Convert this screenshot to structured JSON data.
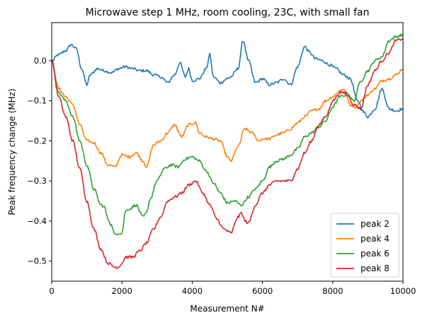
{
  "chart_data": {
    "type": "line",
    "title": "Microwave step 1 MHz, room cooling, 23C, with small fan",
    "xlabel": "Measurement N#",
    "ylabel": "Peak frequency change (MHz)",
    "xlim": [
      0,
      10000
    ],
    "ylim": [
      -0.55,
      0.095
    ],
    "xticks": [
      0,
      2000,
      4000,
      6000,
      8000,
      10000
    ],
    "xtick_labels": [
      "0",
      "2000",
      "4000",
      "6000",
      "8000",
      "10000"
    ],
    "yticks": [
      0.0,
      -0.1,
      -0.2,
      -0.3,
      -0.4,
      -0.5
    ],
    "ytick_labels": [
      "0.0",
      "−0.1",
      "−0.2",
      "−0.3",
      "−0.4",
      "−0.5"
    ],
    "grid": false,
    "legend": "lower-right",
    "series": [
      {
        "name": "peak 2",
        "color": "#1f77b4",
        "x": [
          0,
          200,
          400,
          550,
          700,
          850,
          1000,
          1100,
          1300,
          1500,
          1700,
          1900,
          2100,
          2300,
          2500,
          2700,
          2900,
          3100,
          3300,
          3500,
          3650,
          3800,
          3900,
          4000,
          4200,
          4400,
          4500,
          4600,
          4800,
          5000,
          5100,
          5300,
          5450,
          5600,
          5800,
          6000,
          6200,
          6400,
          6600,
          6800,
          7000,
          7200,
          7350,
          7500,
          7700,
          7900,
          8100,
          8300,
          8500,
          8700,
          8900,
          9000,
          9200,
          9400,
          9600,
          9800,
          10000
        ],
        "y": [
          0.0,
          0.015,
          0.025,
          0.04,
          0.03,
          -0.02,
          -0.06,
          -0.035,
          -0.02,
          -0.025,
          -0.03,
          -0.02,
          -0.015,
          -0.02,
          -0.025,
          -0.025,
          -0.035,
          -0.04,
          -0.055,
          -0.035,
          -0.005,
          -0.04,
          -0.02,
          -0.05,
          -0.045,
          -0.02,
          0.015,
          -0.04,
          -0.055,
          -0.045,
          -0.04,
          -0.02,
          0.05,
          0.0,
          -0.055,
          -0.045,
          -0.06,
          -0.055,
          -0.045,
          -0.06,
          -0.015,
          0.035,
          0.02,
          0.005,
          0.0,
          -0.01,
          -0.02,
          -0.035,
          -0.045,
          -0.1,
          -0.13,
          -0.14,
          -0.12,
          -0.07,
          -0.12,
          -0.125,
          -0.12
        ]
      },
      {
        "name": "peak 4",
        "color": "#ff7f0e",
        "x": [
          0,
          200,
          400,
          600,
          800,
          1000,
          1200,
          1400,
          1600,
          1800,
          2000,
          2200,
          2400,
          2600,
          2700,
          2900,
          3100,
          3300,
          3500,
          3700,
          3900,
          4100,
          4200,
          4400,
          4600,
          4800,
          5000,
          5100,
          5300,
          5500,
          5700,
          5900,
          6000,
          6200,
          6400,
          6600,
          6800,
          7000,
          7200,
          7400,
          7600,
          7800,
          8000,
          8200,
          8300,
          8500,
          8650,
          8800,
          9000,
          9200,
          9400,
          9600,
          9800,
          10000
        ],
        "y": [
          0.0,
          -0.07,
          -0.09,
          -0.11,
          -0.16,
          -0.2,
          -0.205,
          -0.23,
          -0.26,
          -0.265,
          -0.235,
          -0.24,
          -0.23,
          -0.25,
          -0.265,
          -0.21,
          -0.2,
          -0.18,
          -0.16,
          -0.19,
          -0.16,
          -0.155,
          -0.18,
          -0.19,
          -0.195,
          -0.2,
          -0.24,
          -0.25,
          -0.215,
          -0.17,
          -0.18,
          -0.2,
          -0.195,
          -0.195,
          -0.185,
          -0.18,
          -0.17,
          -0.155,
          -0.14,
          -0.125,
          -0.12,
          -0.1,
          -0.09,
          -0.075,
          -0.07,
          -0.11,
          -0.115,
          -0.1,
          -0.085,
          -0.07,
          -0.05,
          -0.045,
          -0.035,
          -0.02
        ]
      },
      {
        "name": "peak 6",
        "color": "#2ca02c",
        "x": [
          0,
          200,
          400,
          600,
          800,
          1000,
          1200,
          1400,
          1500,
          1600,
          1700,
          1800,
          1900,
          2000,
          2100,
          2200,
          2400,
          2600,
          2700,
          2800,
          3000,
          3200,
          3400,
          3600,
          3800,
          4000,
          4200,
          4400,
          4600,
          4800,
          5000,
          5200,
          5400,
          5600,
          5800,
          6000,
          6200,
          6400,
          6600,
          6800,
          7000,
          7200,
          7400,
          7600,
          7800,
          8000,
          8200,
          8400,
          8600,
          8800,
          9000,
          9200,
          9400,
          9600,
          9800,
          10000
        ],
        "y": [
          0.0,
          -0.08,
          -0.1,
          -0.14,
          -0.2,
          -0.26,
          -0.32,
          -0.36,
          -0.365,
          -0.395,
          -0.41,
          -0.435,
          -0.43,
          -0.43,
          -0.375,
          -0.37,
          -0.36,
          -0.39,
          -0.38,
          -0.345,
          -0.3,
          -0.27,
          -0.26,
          -0.265,
          -0.245,
          -0.24,
          -0.25,
          -0.275,
          -0.305,
          -0.33,
          -0.355,
          -0.35,
          -0.36,
          -0.34,
          -0.32,
          -0.3,
          -0.265,
          -0.25,
          -0.245,
          -0.235,
          -0.22,
          -0.19,
          -0.18,
          -0.165,
          -0.15,
          -0.115,
          -0.09,
          -0.085,
          -0.1,
          -0.05,
          -0.025,
          0.0,
          0.01,
          0.05,
          0.06,
          0.065
        ]
      },
      {
        "name": "peak 8",
        "color": "#d62728",
        "x": [
          0,
          200,
          400,
          600,
          800,
          1000,
          1200,
          1400,
          1600,
          1800,
          1900,
          2000,
          2100,
          2300,
          2500,
          2700,
          2900,
          3100,
          3300,
          3500,
          3700,
          3900,
          4100,
          4300,
          4500,
          4700,
          4900,
          5100,
          5300,
          5400,
          5500,
          5600,
          5800,
          6000,
          6200,
          6400,
          6600,
          6800,
          7000,
          7200,
          7400,
          7600,
          7800,
          8000,
          8200,
          8400,
          8600,
          8800,
          9000,
          9200,
          9400,
          9600,
          9800,
          10000
        ],
        "y": [
          0.0,
          -0.09,
          -0.14,
          -0.2,
          -0.27,
          -0.35,
          -0.42,
          -0.47,
          -0.505,
          -0.515,
          -0.515,
          -0.505,
          -0.49,
          -0.49,
          -0.475,
          -0.455,
          -0.42,
          -0.39,
          -0.35,
          -0.34,
          -0.33,
          -0.31,
          -0.3,
          -0.33,
          -0.36,
          -0.395,
          -0.42,
          -0.43,
          -0.39,
          -0.38,
          -0.4,
          -0.405,
          -0.36,
          -0.33,
          -0.31,
          -0.3,
          -0.3,
          -0.3,
          -0.27,
          -0.23,
          -0.2,
          -0.16,
          -0.14,
          -0.1,
          -0.08,
          -0.08,
          -0.11,
          -0.12,
          -0.06,
          -0.025,
          0.0,
          0.02,
          0.05,
          0.055
        ]
      }
    ]
  }
}
